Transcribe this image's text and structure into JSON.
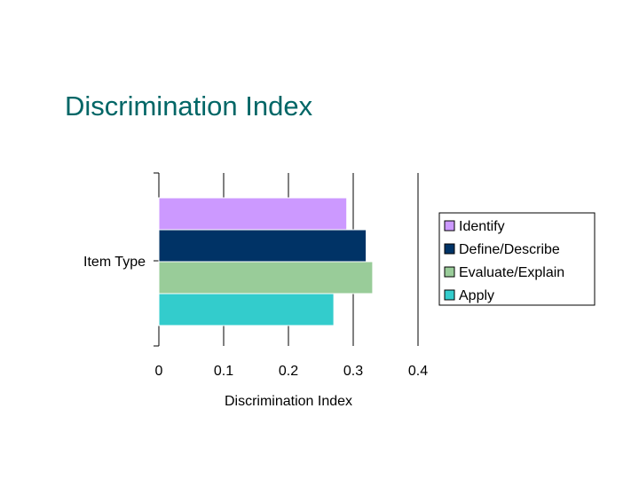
{
  "slide": {
    "title": "Discrimination Index"
  },
  "chart_data": {
    "type": "bar",
    "orientation": "horizontal",
    "title": "",
    "xlabel": "Discrimination Index",
    "ylabel": "Item Type",
    "xlim": [
      0,
      0.4
    ],
    "xticks": [
      0,
      0.1,
      0.2,
      0.3,
      0.4
    ],
    "xtick_labels": [
      "0",
      "0.1",
      "0.2",
      "0.3",
      "0.4"
    ],
    "grid": true,
    "legend_position": "right",
    "categories": [
      "Item Type"
    ],
    "series": [
      {
        "name": "Identify",
        "values": [
          0.29
        ],
        "color": "#cc99ff"
      },
      {
        "name": "Define/Describe",
        "values": [
          0.32
        ],
        "color": "#003366"
      },
      {
        "name": "Evaluate/Explain",
        "values": [
          0.33
        ],
        "color": "#99cc99"
      },
      {
        "name": "Apply",
        "values": [
          0.27
        ],
        "color": "#33cccc"
      }
    ]
  }
}
